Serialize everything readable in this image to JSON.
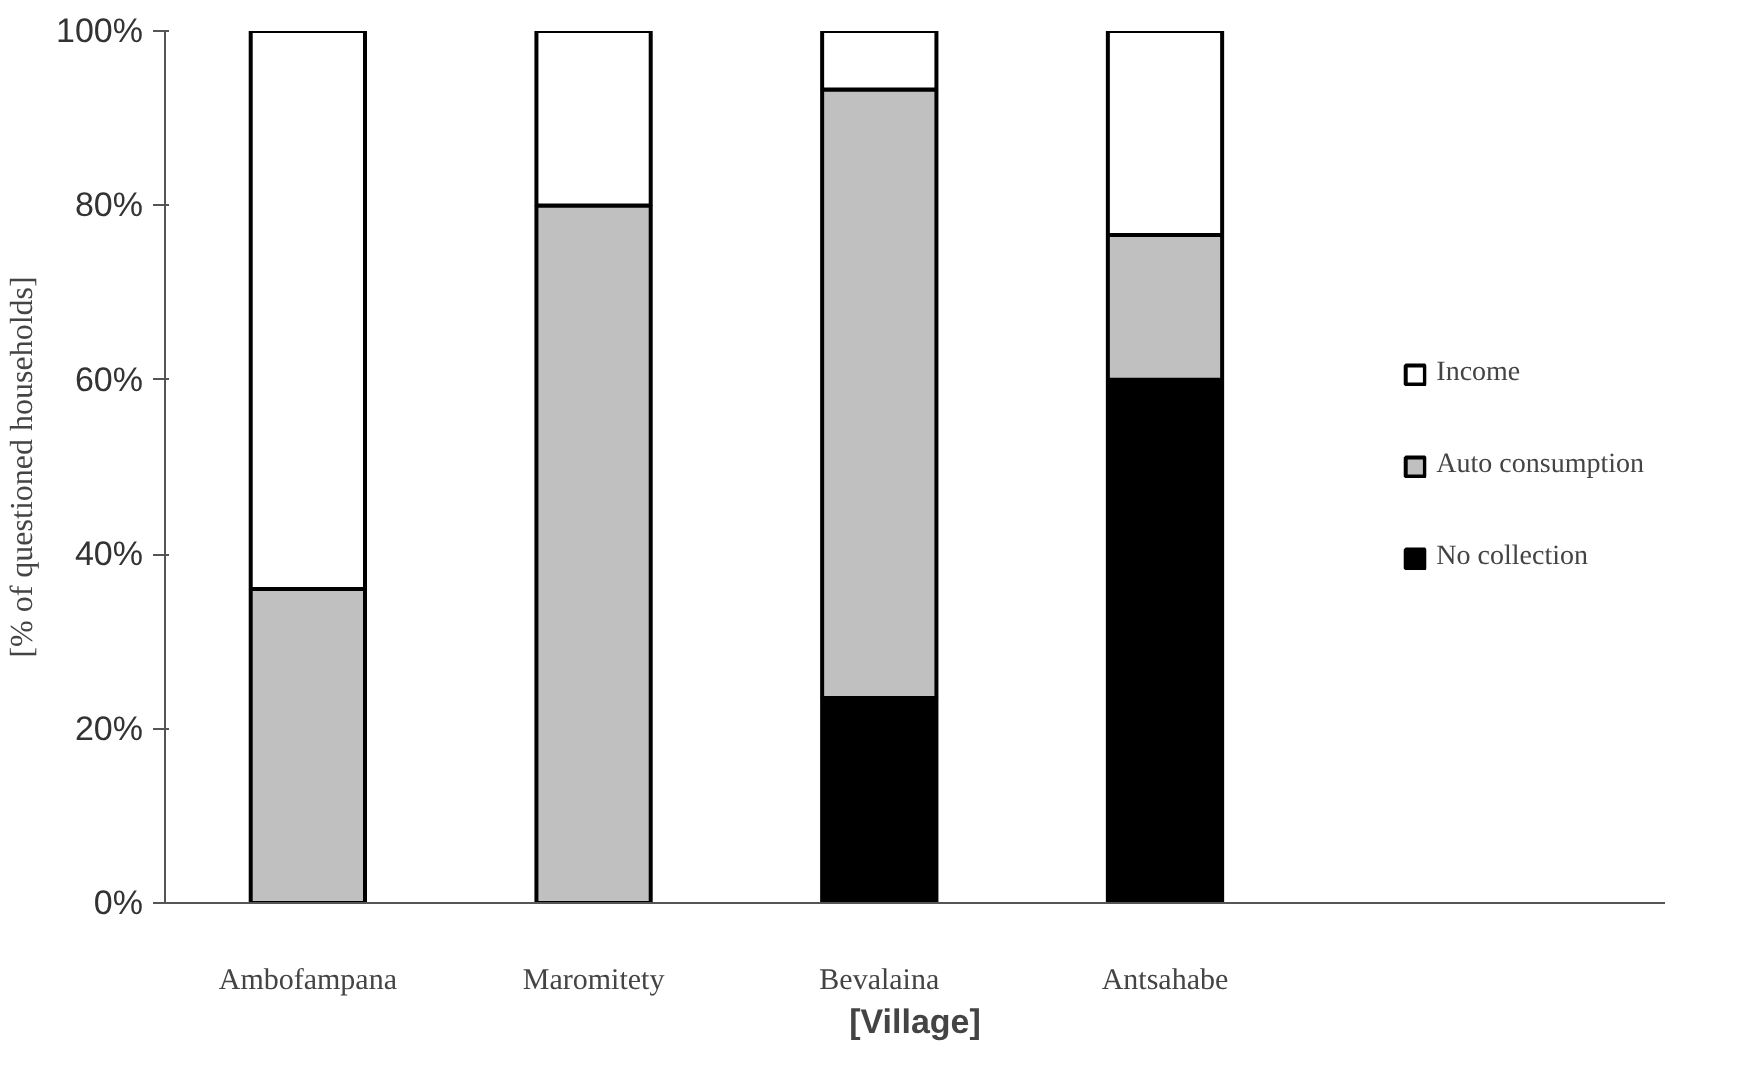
{
  "chart_data": {
    "type": "bar",
    "stacked": true,
    "xlabel": "[Village]",
    "ylabel": "[% of questioned households]",
    "categories": [
      "Ambofampana",
      "Maromitety",
      "Bevalaina",
      "Antsahabe"
    ],
    "series": [
      {
        "name": "No collection",
        "color": "#000000",
        "values": [
          0,
          0,
          23.5,
          60
        ]
      },
      {
        "name": "Auto consumption",
        "color": "#c0c0c0",
        "values": [
          36,
          80,
          69.8,
          16.6
        ]
      },
      {
        "name": "Income",
        "color": "#ffffff",
        "values": [
          64,
          20,
          6.7,
          23.4
        ]
      }
    ],
    "ylim": [
      0,
      100
    ],
    "yticks": [
      {
        "value": 0,
        "label": "0%"
      },
      {
        "value": 20,
        "label": "20%"
      },
      {
        "value": 40,
        "label": "40%"
      },
      {
        "value": 60,
        "label": "60%"
      },
      {
        "value": 80,
        "label": "80%"
      },
      {
        "value": 100,
        "label": "100%"
      }
    ],
    "grid": false,
    "legend": "right"
  }
}
